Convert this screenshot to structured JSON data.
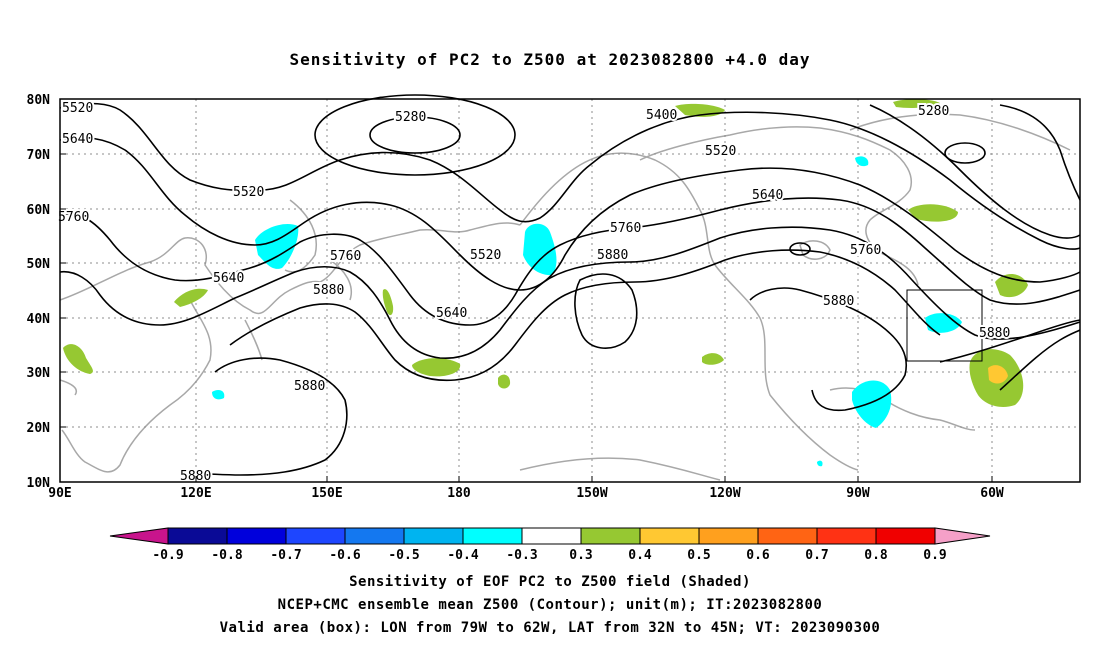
{
  "title": "Sensitivity of PC2 to Z500 at 2023082800 +4.0 day",
  "map": {
    "lat_labels": [
      "80N",
      "70N",
      "60N",
      "50N",
      "40N",
      "30N",
      "20N",
      "10N"
    ],
    "lon_labels": [
      "90E",
      "120E",
      "150E",
      "180",
      "150W",
      "120W",
      "90W",
      "60W"
    ],
    "contour_labels": [
      "5520",
      "5640",
      "5760",
      "5640",
      "5520",
      "5280",
      "5400",
      "5520",
      "5640",
      "5760",
      "5880",
      "5280",
      "5760",
      "5880",
      "5880",
      "5640",
      "5880",
      "5880"
    ],
    "valid_box": {
      "lon_from": "79W",
      "lon_to": "62W",
      "lat_from": "32N",
      "lat_to": "45N"
    }
  },
  "colorbar": {
    "labels": [
      "-0.9",
      "-0.8",
      "-0.7",
      "-0.6",
      "-0.5",
      "-0.4",
      "-0.3",
      "0.3",
      "0.4",
      "0.5",
      "0.6",
      "0.7",
      "0.8",
      "0.9"
    ],
    "colors": [
      "#0a0a96",
      "#0000dc",
      "#1e46ff",
      "#1478f0",
      "#00b4f0",
      "#00ffff",
      "#ffffff",
      "#96c832",
      "#ffc832",
      "#ffa01e",
      "#ff6414",
      "#ff3214",
      "#f00000"
    ],
    "end_low": "#c8148c",
    "end_high": "#f5a0c8"
  },
  "captions": [
    "Sensitivity of EOF PC2 to Z500 field (Shaded)",
    "NCEP+CMC ensemble mean Z500 (Contour); unit(m); IT:2023082800",
    "Valid area (box): LON from 79W to 62W, LAT from 32N to 45N; VT: 2023090300"
  ]
}
